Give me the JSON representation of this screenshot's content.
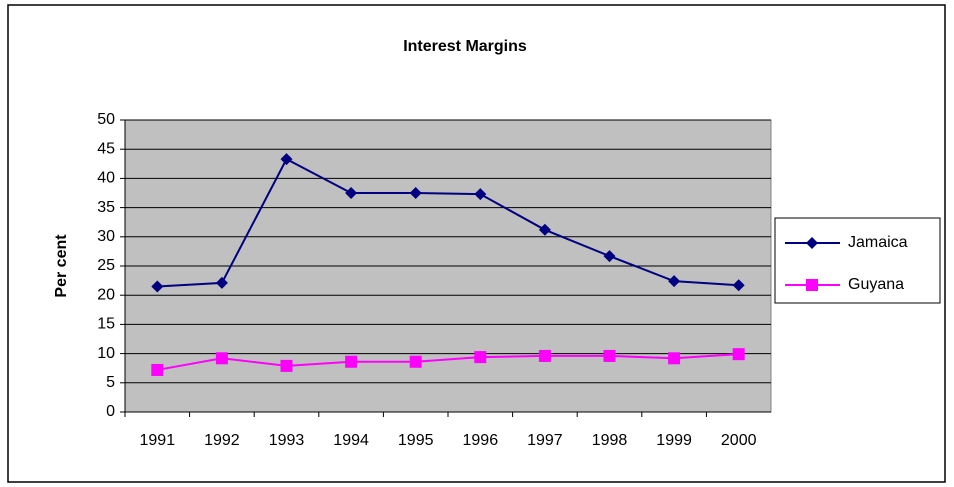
{
  "chart_data": {
    "type": "line",
    "title": "Interest Margins",
    "y_label": "Per cent",
    "categories": [
      "1991",
      "1992",
      "1993",
      "1994",
      "1995",
      "1996",
      "1997",
      "1998",
      "1999",
      "2000"
    ],
    "series": [
      {
        "name": "Jamaica",
        "color": "#000080",
        "marker": "diamond",
        "values": [
          21.5,
          22.1,
          43.3,
          37.5,
          37.5,
          37.3,
          31.2,
          26.7,
          22.4,
          21.7
        ]
      },
      {
        "name": "Guyana",
        "color": "#ff00ff",
        "marker": "square",
        "values": [
          7.2,
          9.2,
          7.9,
          8.6,
          8.6,
          9.4,
          9.6,
          9.6,
          9.2,
          9.9
        ]
      }
    ],
    "ylim": [
      0,
      50
    ],
    "yticks": [
      0,
      5,
      10,
      15,
      20,
      25,
      30,
      35,
      40,
      45,
      50
    ],
    "grid": true,
    "legend": "right"
  }
}
